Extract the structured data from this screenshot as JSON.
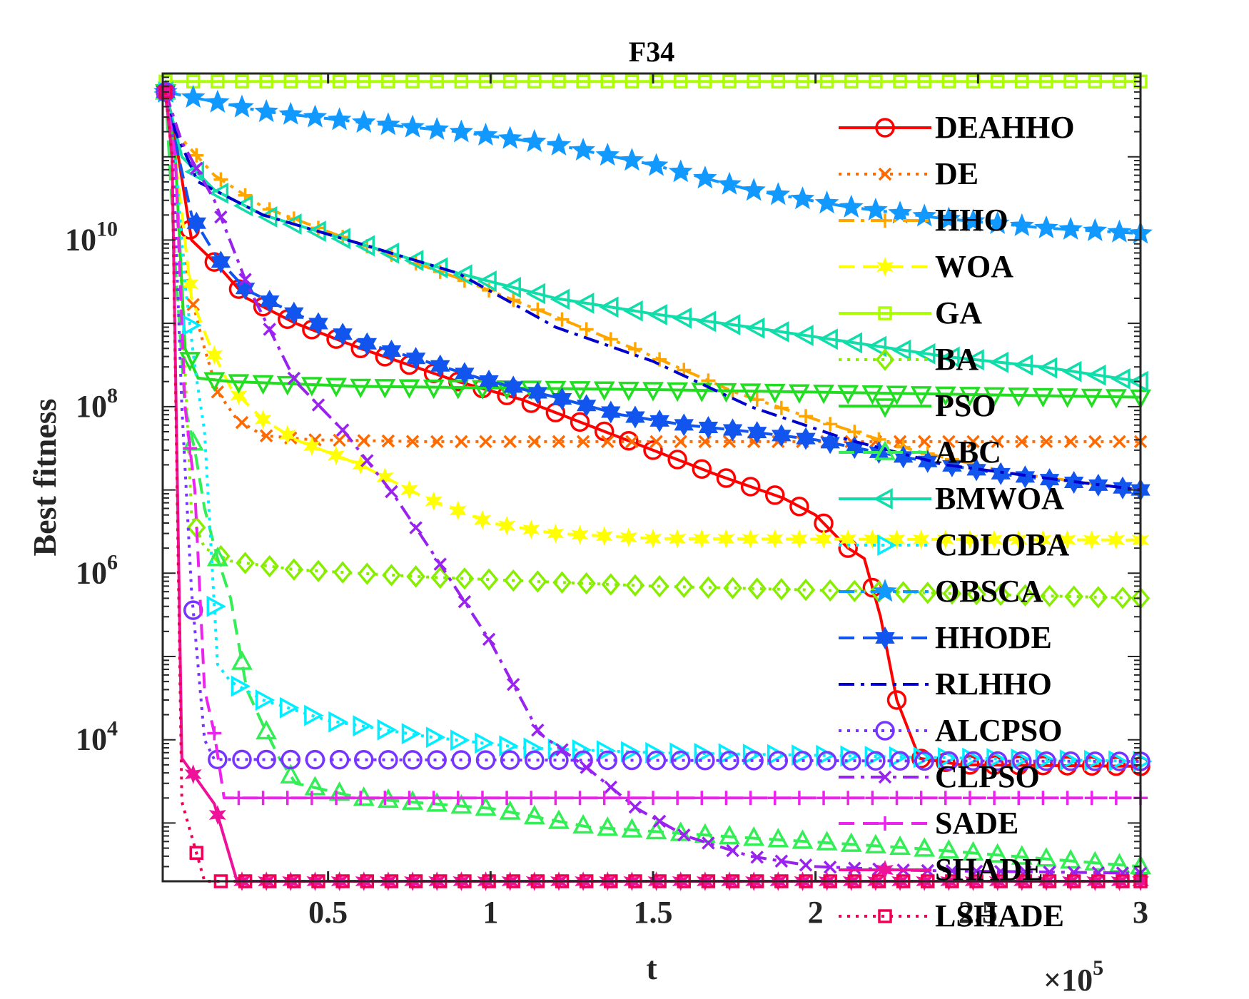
{
  "chart_data": {
    "type": "line",
    "title": "F34",
    "xlabel": "t",
    "ylabel": "Best fitness",
    "x_multiplier_label": "×10",
    "x_multiplier_exp": "5",
    "xlim": [
      0,
      300000
    ],
    "ylim": [
      200,
      1000000000000.0
    ],
    "yscale": "log",
    "x_ticks": [
      50000,
      100000,
      150000,
      200000,
      250000,
      300000
    ],
    "x_tick_labels": [
      "0.5",
      "1",
      "1.5",
      "2",
      "2.5",
      "3"
    ],
    "y_ticks": [
      10000,
      1000000,
      100000000,
      10000000000
    ],
    "y_tick_base": "10",
    "y_tick_exps": [
      "4",
      "6",
      "8",
      "10"
    ],
    "legend_position": "right",
    "series": [
      {
        "name": "DEAHHO",
        "color": "#ff0000",
        "dash": "solid",
        "marker": "circle",
        "points": [
          [
            0,
            600000000000.0
          ],
          [
            2000,
            300000000000.0
          ],
          [
            8000,
            10000000000.0
          ],
          [
            16000,
            5000000000.0
          ],
          [
            25000,
            2000000000.0
          ],
          [
            40000,
            1000000000.0
          ],
          [
            60000,
            500000000.0
          ],
          [
            90000,
            200000000.0
          ],
          [
            110000,
            120000000.0
          ],
          [
            130000,
            60000000.0
          ],
          [
            150000,
            30000000.0
          ],
          [
            170000,
            15000000.0
          ],
          [
            190000,
            8000000.0
          ],
          [
            200000,
            5000000.0
          ],
          [
            210000,
            2000000.0
          ],
          [
            215000,
            1500000.0
          ],
          [
            220000,
            300000.0
          ],
          [
            225000,
            30000.0
          ],
          [
            232000,
            6000
          ],
          [
            245000,
            5000
          ],
          [
            300000,
            4800
          ]
        ]
      },
      {
        "name": "DE",
        "color": "#ff6a00",
        "dash": "dot",
        "marker": "x",
        "points": [
          [
            0,
            600000000000.0
          ],
          [
            2000,
            100000000000.0
          ],
          [
            5000,
            8000000000.0
          ],
          [
            8000,
            2000000000.0
          ],
          [
            12000,
            500000000.0
          ],
          [
            16000,
            150000000.0
          ],
          [
            22000,
            70000000.0
          ],
          [
            30000,
            45000000.0
          ],
          [
            45000,
            40000000.0
          ],
          [
            80000,
            38000000.0
          ],
          [
            300000,
            38000000.0
          ]
        ]
      },
      {
        "name": "HHO",
        "color": "#ffa500",
        "dash": "dashdot",
        "marker": "plus",
        "points": [
          [
            0,
            600000000000.0
          ],
          [
            3000,
            200000000000.0
          ],
          [
            15000,
            60000000000.0
          ],
          [
            30000,
            25000000000.0
          ],
          [
            60000,
            9000000000.0
          ],
          [
            90000,
            3500000000.0
          ],
          [
            120000,
            1200000000.0
          ],
          [
            150000,
            400000000.0
          ],
          [
            175000,
            150000000.0
          ],
          [
            200000,
            70000000.0
          ],
          [
            230000,
            30000000.0
          ],
          [
            260000,
            16000000.0
          ],
          [
            300000,
            10000000.0
          ]
        ]
      },
      {
        "name": "WOA",
        "color": "#ffff00",
        "dash": "dashed",
        "marker": "star6",
        "points": [
          [
            0,
            600000000000.0
          ],
          [
            3000,
            100000000000.0
          ],
          [
            8000,
            2000000000.0
          ],
          [
            14000,
            500000000.0
          ],
          [
            20000,
            170000000.0
          ],
          [
            30000,
            70000000.0
          ],
          [
            40000,
            40000000.0
          ],
          [
            60000,
            20000000.0
          ],
          [
            80000,
            8000000.0
          ],
          [
            100000,
            4000000.0
          ],
          [
            120000,
            3000000.0
          ],
          [
            150000,
            2600000.0
          ],
          [
            300000,
            2500000.0
          ]
        ]
      },
      {
        "name": "GA",
        "color": "#aaff00",
        "dash": "solid",
        "marker": "square",
        "points": [
          [
            0,
            800000000000.0
          ],
          [
            300000,
            800000000000.0
          ]
        ]
      },
      {
        "name": "BA",
        "color": "#88ee00",
        "dash": "dot",
        "marker": "diamond",
        "points": [
          [
            0,
            600000000000.0
          ],
          [
            3000,
            100000000000.0
          ],
          [
            8000,
            5000000.0
          ],
          [
            12000,
            2000000.0
          ],
          [
            20000,
            1400000.0
          ],
          [
            40000,
            1100000.0
          ],
          [
            80000,
            900000.0
          ],
          [
            150000,
            700000.0
          ],
          [
            220000,
            600000.0
          ],
          [
            300000,
            500000.0
          ]
        ]
      },
      {
        "name": "PSO",
        "color": "#22dd22",
        "dash": "solid",
        "marker": "tridown",
        "points": [
          [
            0,
            600000000000.0
          ],
          [
            3000,
            100000000000.0
          ],
          [
            6000,
            500000000.0
          ],
          [
            10000,
            220000000.0
          ],
          [
            20000,
            200000000.0
          ],
          [
            60000,
            175000000.0
          ],
          [
            150000,
            160000000.0
          ],
          [
            300000,
            130000000.0
          ]
        ]
      },
      {
        "name": "ABC",
        "color": "#33ee55",
        "dash": "dashed",
        "marker": "triangle",
        "points": [
          [
            0,
            600000000000.0
          ],
          [
            3000,
            5000000000.0
          ],
          [
            6000,
            100000000.0
          ],
          [
            9000,
            30000000.0
          ],
          [
            12000,
            6000000.0
          ],
          [
            16000,
            1500000.0
          ],
          [
            20000,
            500000.0
          ],
          [
            25000,
            40000.0
          ],
          [
            30000,
            15000.0
          ],
          [
            35000,
            6000
          ],
          [
            40000,
            3000
          ],
          [
            60000,
            2000
          ],
          [
            100000,
            1500
          ],
          [
            130000,
            900
          ],
          [
            170000,
            700
          ],
          [
            230000,
            500
          ],
          [
            300000,
            300
          ]
        ]
      },
      {
        "name": "BMWOA",
        "color": "#11ddaa",
        "dash": "solid",
        "marker": "triangleleft",
        "points": [
          [
            0,
            600000000000.0
          ],
          [
            5000,
            100000000000.0
          ],
          [
            15000,
            40000000000.0
          ],
          [
            30000,
            20000000000.0
          ],
          [
            60000,
            9000000000.0
          ],
          [
            90000,
            4000000000.0
          ],
          [
            120000,
            2000000000.0
          ],
          [
            150000,
            1300000000.0
          ],
          [
            180000,
            900000000.0
          ],
          [
            210000,
            600000000.0
          ],
          [
            240000,
            400000000.0
          ],
          [
            270000,
            300000000.0
          ],
          [
            300000,
            200000000.0
          ]
        ]
      },
      {
        "name": "CDLOBA",
        "color": "#00eeff",
        "dash": "dot",
        "marker": "triangleright",
        "points": [
          [
            0,
            600000000000.0
          ],
          [
            3000,
            100000000000.0
          ],
          [
            6000,
            3000000000.0
          ],
          [
            9000,
            300000000.0
          ],
          [
            12000,
            50000000.0
          ],
          [
            16000,
            80000.0
          ],
          [
            20000,
            50000.0
          ],
          [
            30000,
            30000.0
          ],
          [
            50000,
            17000.0
          ],
          [
            80000,
            11000.0
          ],
          [
            110000,
            8000
          ],
          [
            150000,
            7000
          ],
          [
            200000,
            6500
          ],
          [
            300000,
            5500
          ]
        ]
      },
      {
        "name": "OBSCA",
        "color": "#1199ff",
        "dash": "dashdot",
        "marker": "star5",
        "points": [
          [
            0,
            600000000000.0
          ],
          [
            30000,
            350000000000.0
          ],
          [
            60000,
            260000000000.0
          ],
          [
            90000,
            200000000000.0
          ],
          [
            120000,
            140000000000.0
          ],
          [
            150000,
            80000000000.0
          ],
          [
            180000,
            40000000000.0
          ],
          [
            210000,
            25000000000.0
          ],
          [
            240000,
            18000000000.0
          ],
          [
            270000,
            14000000000.0
          ],
          [
            300000,
            12000000000.0
          ]
        ]
      },
      {
        "name": "HHODE",
        "color": "#1155ee",
        "dash": "dashed",
        "marker": "hexagram",
        "points": [
          [
            0,
            600000000000.0
          ],
          [
            3000,
            150000000000.0
          ],
          [
            8000,
            20000000000.0
          ],
          [
            16000,
            6000000000.0
          ],
          [
            25000,
            2500000000.0
          ],
          [
            40000,
            1300000000.0
          ],
          [
            60000,
            600000000.0
          ],
          [
            80000,
            350000000.0
          ],
          [
            100000,
            200000000.0
          ],
          [
            120000,
            130000000.0
          ],
          [
            140000,
            80000000.0
          ],
          [
            160000,
            60000000.0
          ],
          [
            180000,
            50000000.0
          ],
          [
            200000,
            40000000.0
          ],
          [
            220000,
            28000000.0
          ],
          [
            240000,
            20000000.0
          ],
          [
            260000,
            15000000.0
          ],
          [
            300000,
            10000000.0
          ]
        ]
      },
      {
        "name": "RLHHO",
        "color": "#0000cc",
        "dash": "dashdot",
        "marker": "none",
        "points": [
          [
            0,
            600000000000.0
          ],
          [
            3000,
            200000000000.0
          ],
          [
            10000,
            50000000000.0
          ],
          [
            30000,
            20000000000.0
          ],
          [
            60000,
            9000000000.0
          ],
          [
            90000,
            4000000000.0
          ],
          [
            120000,
            900000000.0
          ],
          [
            150000,
            350000000.0
          ],
          [
            180000,
            100000000.0
          ],
          [
            210000,
            40000000.0
          ],
          [
            240000,
            20000000.0
          ],
          [
            270000,
            14000000.0
          ],
          [
            300000,
            10000000.0
          ]
        ]
      },
      {
        "name": "ALCPSO",
        "color": "#7733ff",
        "dash": "dot",
        "marker": "circle",
        "points": [
          [
            0,
            600000000000.0
          ],
          [
            2000,
            200000000000.0
          ],
          [
            5000,
            100000000.0
          ],
          [
            8000,
            600000.0
          ],
          [
            12000,
            10000.0
          ],
          [
            15000,
            5800
          ],
          [
            300000,
            5500
          ]
        ]
      },
      {
        "name": "CLPSO",
        "color": "#9922ee",
        "dash": "dashdot",
        "marker": "x",
        "points": [
          [
            0,
            600000000000.0
          ],
          [
            5000,
            150000000000.0
          ],
          [
            15000,
            30000000000.0
          ],
          [
            25000,
            3000000000.0
          ],
          [
            40000,
            200000000.0
          ],
          [
            55000,
            50000000.0
          ],
          [
            70000,
            9000000.0
          ],
          [
            85000,
            1200000.0
          ],
          [
            100000,
            150000.0
          ],
          [
            115000,
            12000.0
          ],
          [
            130000,
            4500
          ],
          [
            145000,
            1500
          ],
          [
            160000,
            700
          ],
          [
            180000,
            400
          ],
          [
            200000,
            300
          ],
          [
            230000,
            270
          ],
          [
            300000,
            250
          ]
        ]
      },
      {
        "name": "SADE",
        "color": "#ee22ee",
        "dash": "dashed",
        "marker": "plus",
        "points": [
          [
            0,
            600000000000.0
          ],
          [
            3000,
            100000000000.0
          ],
          [
            6000,
            100000000.0
          ],
          [
            9000,
            10000000.0
          ],
          [
            12000,
            40000.0
          ],
          [
            15000,
            12000.0
          ],
          [
            18000,
            2000
          ],
          [
            300000,
            2000
          ]
        ]
      },
      {
        "name": "SHADE",
        "color": "#ee1199",
        "dash": "solid",
        "marker": "star6",
        "points": [
          [
            0,
            600000000000.0
          ],
          [
            2000,
            100000000000.0
          ],
          [
            5000,
            6000
          ],
          [
            15000,
            1700
          ],
          [
            22000,
            200
          ],
          [
            300000,
            200
          ]
        ]
      },
      {
        "name": "LSHADE",
        "color": "#ee0055",
        "dash": "dot",
        "marker": "square",
        "points": [
          [
            0,
            600000000000.0
          ],
          [
            2000,
            100000000000.0
          ],
          [
            5000,
            1800
          ],
          [
            12000,
            200
          ],
          [
            300000,
            200
          ]
        ]
      }
    ]
  }
}
